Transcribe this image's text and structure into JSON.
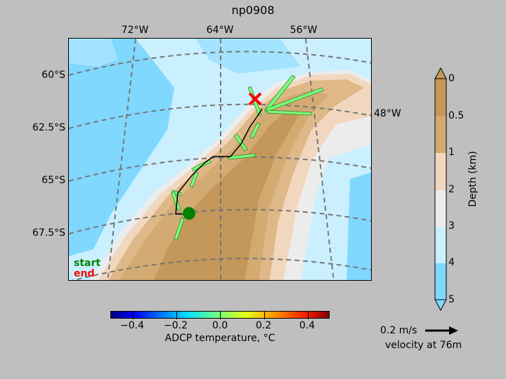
{
  "title": "np0908",
  "map": {
    "lon_labels": [
      "72°W",
      "64°W",
      "56°W",
      "48°W"
    ],
    "lat_labels": [
      "60°S",
      "62.5°S",
      "65°S",
      "67.5°S"
    ],
    "legend": {
      "start": "start",
      "end": "end",
      "start_color": "#008000",
      "end_color": "#ff0000"
    },
    "start_marker": "green-circle",
    "end_marker": "red-x",
    "track_color": "#000000",
    "arrow_color": "#7dff7a"
  },
  "temperature_colorbar": {
    "label": "ADCP temperature, °C",
    "ticks": [
      "−0.4",
      "−0.2",
      "0.0",
      "0.2",
      "0.4"
    ],
    "range": [
      -0.5,
      0.5
    ]
  },
  "depth_colorbar": {
    "label": "Depth (km)",
    "ticks": [
      "0",
      "0.5",
      "1",
      "2",
      "3",
      "4",
      "5"
    ],
    "colors": [
      "#c4975a",
      "#d2aa72",
      "#deb887",
      "#f2d7bf",
      "#ececec",
      "#caf0ff",
      "#a3e3ff",
      "#80d8ff"
    ]
  },
  "velocity_key": {
    "speed": "0.2 m/s",
    "label": "velocity at 76m"
  }
}
